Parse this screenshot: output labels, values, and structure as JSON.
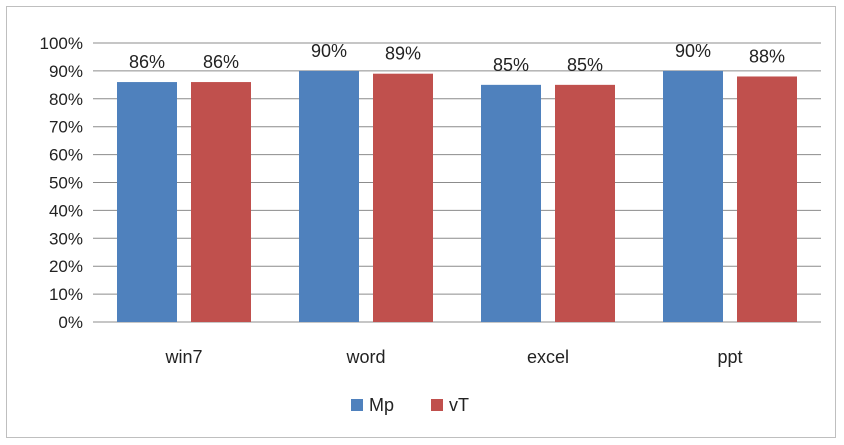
{
  "chart_data": {
    "type": "bar",
    "categories": [
      "win7",
      "word",
      "excel",
      "ppt"
    ],
    "series": [
      {
        "name": "Mp",
        "color": "#4f81bd",
        "values": [
          86,
          90,
          85,
          90
        ],
        "labels": [
          "86%",
          "90%",
          "85%",
          "90%"
        ]
      },
      {
        "name": "vT",
        "color": "#c0504d",
        "values": [
          86,
          89,
          85,
          88
        ],
        "labels": [
          "86%",
          "89%",
          "85%",
          "88%"
        ]
      }
    ],
    "ylim": [
      0,
      100
    ],
    "y_ticks": [
      "0%",
      "10%",
      "20%",
      "30%",
      "40%",
      "50%",
      "60%",
      "70%",
      "80%",
      "90%",
      "100%"
    ],
    "y_tick_values": [
      0,
      10,
      20,
      30,
      40,
      50,
      60,
      70,
      80,
      90,
      100
    ],
    "grid": true,
    "legend": "bottom",
    "gridline_color": "#8c8c8c",
    "title": "",
    "xlabel": "",
    "ylabel": ""
  }
}
